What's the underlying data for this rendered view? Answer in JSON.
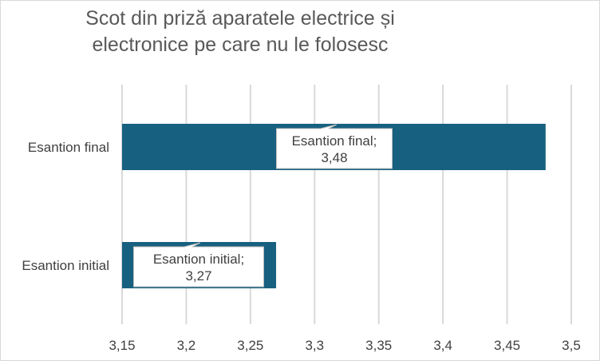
{
  "chart_data": {
    "type": "bar",
    "orientation": "horizontal",
    "title_line1": "Scot din priză aparatele electrice și",
    "title_line2": "electronice pe care nu le folosesc",
    "categories": [
      "Esantion final",
      "Esantion initial"
    ],
    "values": [
      3.48,
      3.27
    ],
    "value_labels": [
      "3,48",
      "3,27"
    ],
    "xlim": [
      3.15,
      3.5
    ],
    "x_ticks": [
      3.15,
      3.2,
      3.25,
      3.3,
      3.35,
      3.4,
      3.45,
      3.5
    ],
    "x_tick_labels": [
      "3,15",
      "3,2",
      "3,25",
      "3,3",
      "3,35",
      "3,4",
      "3,45",
      "3,5"
    ],
    "grid": true,
    "legend": "none",
    "bar_color": "#17607f"
  }
}
